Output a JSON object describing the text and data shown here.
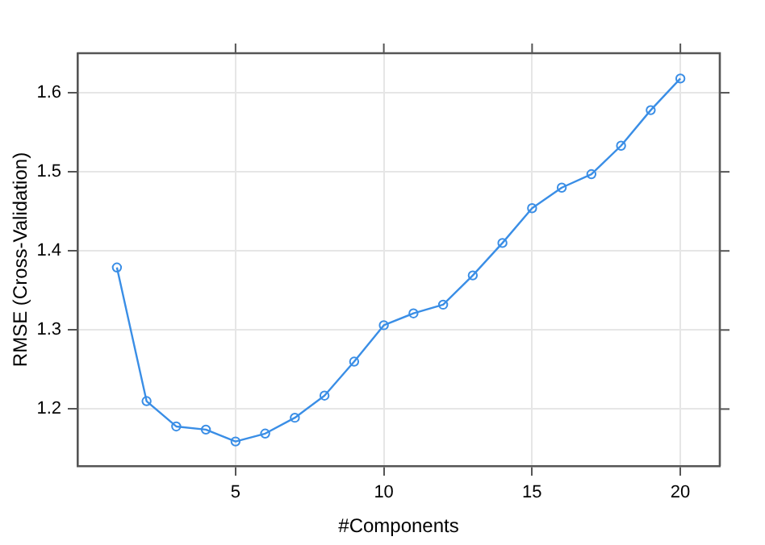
{
  "chart_data": {
    "type": "line",
    "xlabel": "#Components",
    "ylabel": "RMSE (Cross-Validation)",
    "x": [
      1,
      2,
      3,
      4,
      5,
      6,
      7,
      8,
      9,
      10,
      11,
      12,
      13,
      14,
      15,
      16,
      17,
      18,
      19,
      20
    ],
    "series": [
      {
        "color": "#3a8ee6",
        "values": [
          1.379,
          1.21,
          1.178,
          1.174,
          1.159,
          1.169,
          1.189,
          1.217,
          1.26,
          1.306,
          1.321,
          1.332,
          1.369,
          1.41,
          1.454,
          1.48,
          1.497,
          1.533,
          1.578,
          1.618
        ]
      }
    ],
    "xlim": [
      -0.33,
      21.33
    ],
    "xticks": [
      5,
      10,
      15,
      20
    ],
    "ylim": [
      1.128,
      1.65
    ],
    "yticks": [
      1.2,
      1.3,
      1.4,
      1.5,
      1.6
    ],
    "grid": true,
    "legend": false,
    "marker": "circle",
    "line_style": "solid"
  }
}
